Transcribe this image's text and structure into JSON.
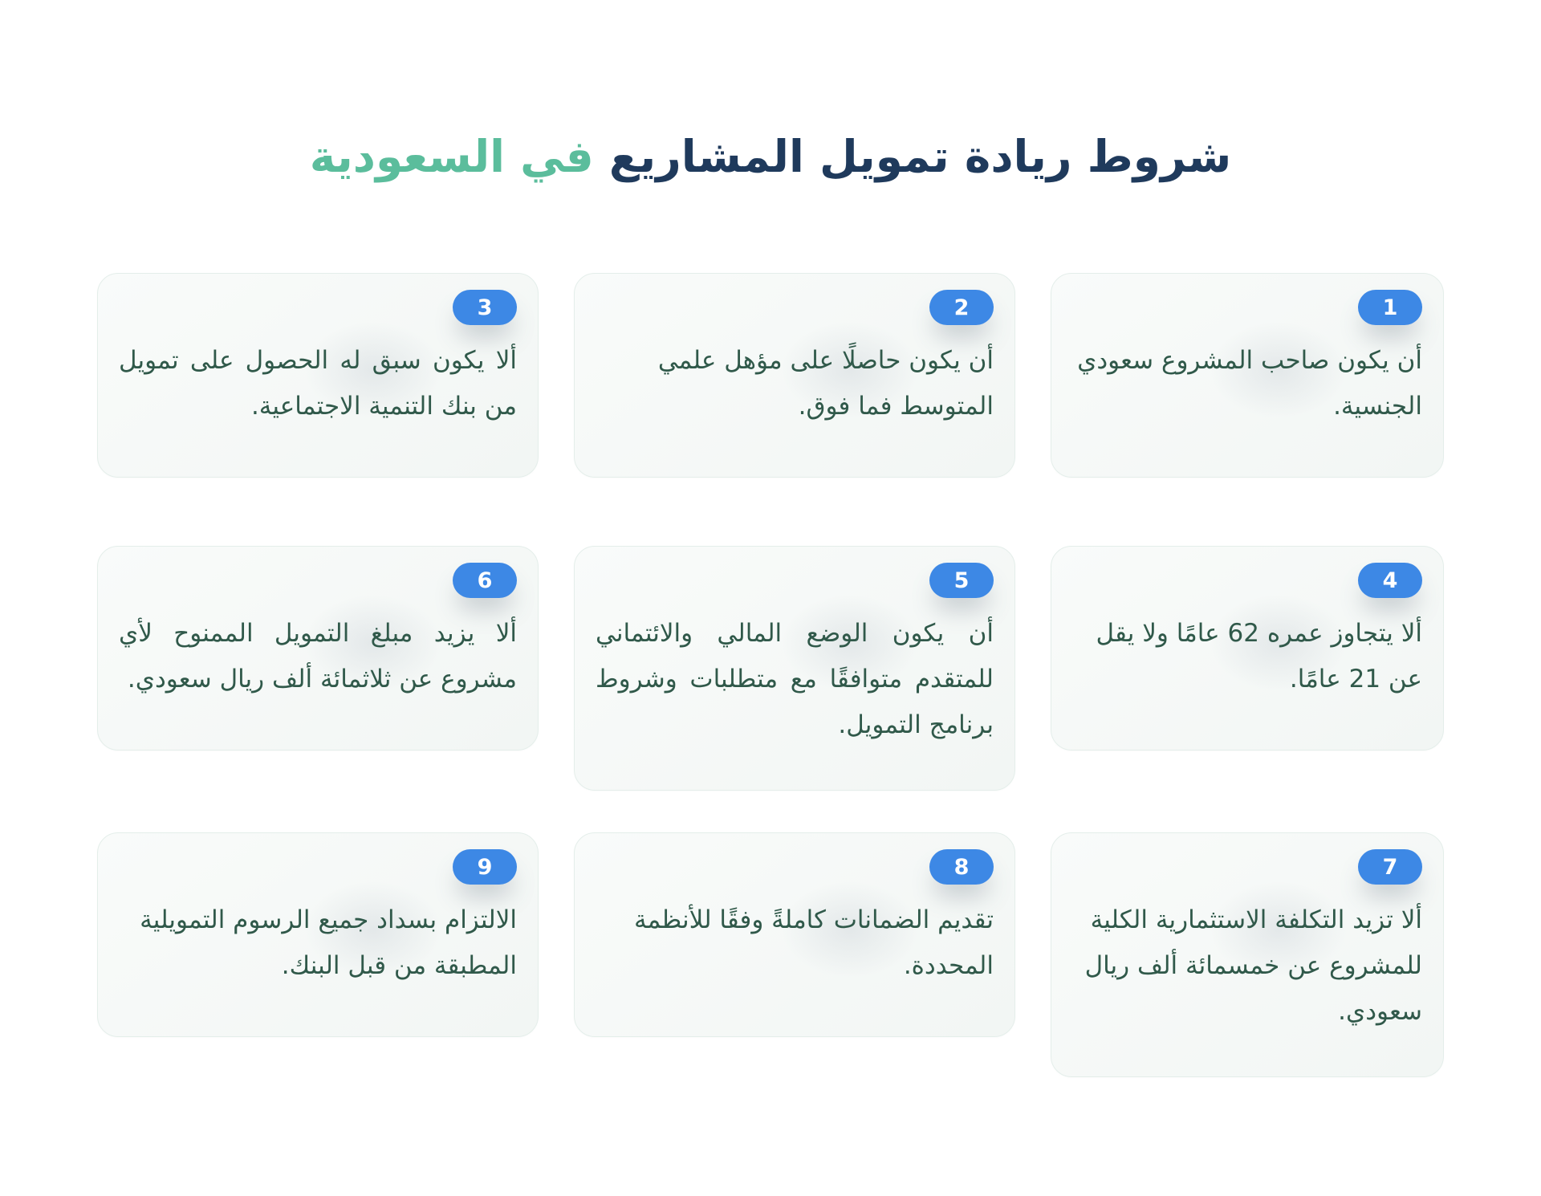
{
  "title": {
    "main": "شروط ريادة تمويل المشاريع",
    "highlight": "في السعودية"
  },
  "colors": {
    "navy": "#1f3a5c",
    "green": "#5bbd9c",
    "blue": "#3d88e5",
    "textgreen": "#30594a"
  },
  "cards": [
    {
      "number": "1",
      "text": "أن يكون صاحب المشروع سعودي الجنسية.",
      "justified": false
    },
    {
      "number": "2",
      "text": "أن يكون حاصلًا على مؤهل علمي المتوسط فما فوق.",
      "justified": false
    },
    {
      "number": "3",
      "text": "ألا يكون سبق له الحصول على تمويل من بنك التنمية الاجتماعية.",
      "justified": true
    },
    {
      "number": "4",
      "text": "ألا يتجاوز عمره 62 عامًا ولا يقل عن 21 عامًا.",
      "justified": false
    },
    {
      "number": "5",
      "text": "أن يكون الوضع المالي والائتماني للمتقدم متوافقًا مع متطلبات وشروط برنامج التمويل.",
      "justified": true
    },
    {
      "number": "6",
      "text": "ألا يزيد مبلغ التمويل الممنوح لأي مشروع عن ثلاثمائة ألف ريال سعودي.",
      "justified": true
    },
    {
      "number": "7",
      "text": "ألا تزيد التكلفة الاستثمارية الكلية للمشروع عن خمسمائة ألف ريال سعودي.",
      "justified": false
    },
    {
      "number": "8",
      "text": "تقديم الضمانات كاملةً وفقًا للأنظمة المحددة.",
      "justified": false
    },
    {
      "number": "9",
      "text": "الالتزام بسداد جميع الرسوم التمويلية المطبقة من قبل البنك.",
      "justified": false
    }
  ]
}
